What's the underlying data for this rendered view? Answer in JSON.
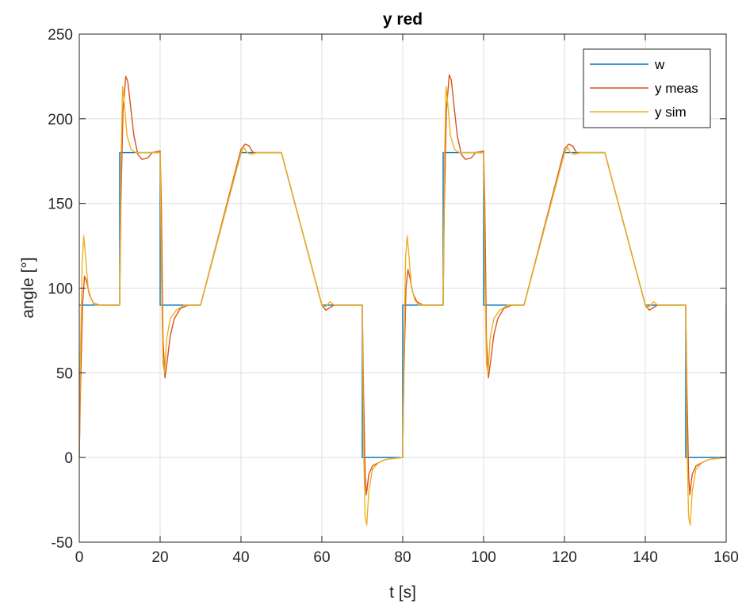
{
  "chart_data": {
    "type": "line",
    "title": "y red",
    "xlabel": "t [s]",
    "ylabel": "angle [°]",
    "xlim": [
      0,
      160
    ],
    "ylim": [
      -50,
      250
    ],
    "xticks": [
      0,
      20,
      40,
      60,
      80,
      100,
      120,
      140,
      160
    ],
    "yticks": [
      -50,
      0,
      50,
      100,
      150,
      200,
      250
    ],
    "grid": true,
    "legend_position": "top-right",
    "series": [
      {
        "name": "w",
        "color": "#0072BD",
        "points": [
          [
            0,
            90
          ],
          [
            10,
            90
          ],
          [
            10,
            180
          ],
          [
            20,
            180
          ],
          [
            20,
            90
          ],
          [
            30,
            90
          ],
          [
            40,
            180
          ],
          [
            50,
            180
          ],
          [
            60,
            90
          ],
          [
            70,
            90
          ],
          [
            70,
            0
          ],
          [
            80,
            0
          ],
          [
            80,
            90
          ],
          [
            90,
            90
          ],
          [
            90,
            180
          ],
          [
            100,
            180
          ],
          [
            100,
            90
          ],
          [
            110,
            90
          ],
          [
            120,
            180
          ],
          [
            130,
            180
          ],
          [
            140,
            90
          ],
          [
            150,
            90
          ],
          [
            150,
            0
          ],
          [
            160,
            0
          ],
          [
            160,
            90
          ]
        ]
      },
      {
        "name": "y meas",
        "color": "#D95319",
        "points": [
          [
            0,
            0
          ],
          [
            0.3,
            40
          ],
          [
            0.8,
            90
          ],
          [
            1.3,
            107
          ],
          [
            1.8,
            104
          ],
          [
            2.5,
            96
          ],
          [
            3.5,
            91
          ],
          [
            5,
            90
          ],
          [
            10,
            90
          ],
          [
            10.3,
            150
          ],
          [
            10.8,
            205
          ],
          [
            11.5,
            225
          ],
          [
            12,
            222
          ],
          [
            12.8,
            205
          ],
          [
            13.5,
            190
          ],
          [
            14.5,
            179
          ],
          [
            15.5,
            176
          ],
          [
            17,
            177
          ],
          [
            18,
            180
          ],
          [
            20,
            181
          ],
          [
            20.3,
            150
          ],
          [
            20.7,
            70
          ],
          [
            21.2,
            47
          ],
          [
            21.8,
            58
          ],
          [
            22.5,
            72
          ],
          [
            23.5,
            82
          ],
          [
            25,
            88
          ],
          [
            27,
            90
          ],
          [
            30,
            90
          ],
          [
            40,
            182
          ],
          [
            41,
            185
          ],
          [
            42,
            184
          ],
          [
            43,
            180
          ],
          [
            50,
            180
          ],
          [
            60,
            90
          ],
          [
            61,
            87
          ],
          [
            62,
            88.5
          ],
          [
            63,
            90
          ],
          [
            70,
            90
          ],
          [
            70.3,
            40
          ],
          [
            70.7,
            -10
          ],
          [
            71,
            -22
          ],
          [
            71.6,
            -10
          ],
          [
            72.5,
            -5
          ],
          [
            74,
            -3
          ],
          [
            76,
            -1
          ],
          [
            80,
            0
          ],
          [
            80.3,
            50
          ],
          [
            80.8,
            100
          ],
          [
            81.3,
            111
          ],
          [
            81.8,
            106
          ],
          [
            82.5,
            97
          ],
          [
            83.5,
            92
          ],
          [
            85,
            90
          ],
          [
            90,
            90
          ],
          [
            90.3,
            150
          ],
          [
            90.8,
            205
          ],
          [
            91.5,
            226
          ],
          [
            92,
            223
          ],
          [
            92.8,
            205
          ],
          [
            93.5,
            190
          ],
          [
            94.5,
            179
          ],
          [
            95.5,
            176
          ],
          [
            97,
            177
          ],
          [
            98,
            180
          ],
          [
            100,
            181
          ],
          [
            100.3,
            150
          ],
          [
            100.7,
            70
          ],
          [
            101.2,
            47
          ],
          [
            101.8,
            58
          ],
          [
            102.5,
            72
          ],
          [
            103.5,
            82
          ],
          [
            105,
            88
          ],
          [
            107,
            90
          ],
          [
            110,
            90
          ],
          [
            120,
            182
          ],
          [
            121,
            185
          ],
          [
            122,
            184
          ],
          [
            123,
            180
          ],
          [
            130,
            180
          ],
          [
            140,
            90
          ],
          [
            141,
            87
          ],
          [
            142,
            88.5
          ],
          [
            143,
            90
          ],
          [
            150,
            90
          ],
          [
            150.3,
            40
          ],
          [
            150.7,
            -10
          ],
          [
            151,
            -22
          ],
          [
            151.6,
            -10
          ],
          [
            152.5,
            -5
          ],
          [
            154,
            -3
          ],
          [
            156,
            -1
          ],
          [
            160,
            0
          ]
        ]
      },
      {
        "name": "y sim",
        "color": "#EDB120",
        "points": [
          [
            0,
            0
          ],
          [
            0.3,
            60
          ],
          [
            0.7,
            115
          ],
          [
            1.1,
            131
          ],
          [
            1.5,
            120
          ],
          [
            2.2,
            100
          ],
          [
            3,
            93
          ],
          [
            4,
            90
          ],
          [
            10,
            90
          ],
          [
            10.3,
            170
          ],
          [
            10.7,
            219
          ],
          [
            11.1,
            210
          ],
          [
            11.8,
            190
          ],
          [
            12.8,
            182
          ],
          [
            14,
            180
          ],
          [
            20,
            180
          ],
          [
            20.3,
            110
          ],
          [
            20.7,
            55
          ],
          [
            21.1,
            50
          ],
          [
            21.6,
            70
          ],
          [
            22.5,
            82
          ],
          [
            24,
            87
          ],
          [
            26,
            90
          ],
          [
            30,
            90
          ],
          [
            40,
            180
          ],
          [
            40.8,
            183
          ],
          [
            41.5,
            180
          ],
          [
            42.5,
            179
          ],
          [
            44,
            180
          ],
          [
            50,
            180
          ],
          [
            60,
            90
          ],
          [
            61,
            89
          ],
          [
            62,
            92
          ],
          [
            63,
            90
          ],
          [
            70,
            90
          ],
          [
            70.3,
            10
          ],
          [
            70.7,
            -35
          ],
          [
            71.1,
            -40
          ],
          [
            71.6,
            -20
          ],
          [
            72.5,
            -7
          ],
          [
            74,
            -3
          ],
          [
            76,
            -1
          ],
          [
            80,
            0
          ],
          [
            80.3,
            60
          ],
          [
            80.7,
            118
          ],
          [
            81.1,
            131
          ],
          [
            81.5,
            120
          ],
          [
            82.2,
            100
          ],
          [
            83,
            93
          ],
          [
            84,
            90
          ],
          [
            90,
            90
          ],
          [
            90.3,
            170
          ],
          [
            90.7,
            219
          ],
          [
            91.1,
            210
          ],
          [
            91.8,
            190
          ],
          [
            92.8,
            182
          ],
          [
            94,
            180
          ],
          [
            100,
            180
          ],
          [
            100.3,
            110
          ],
          [
            100.7,
            55
          ],
          [
            101.1,
            50
          ],
          [
            101.6,
            70
          ],
          [
            102.5,
            82
          ],
          [
            104,
            87
          ],
          [
            106,
            90
          ],
          [
            110,
            90
          ],
          [
            120,
            180
          ],
          [
            120.8,
            183
          ],
          [
            121.5,
            180
          ],
          [
            122.5,
            179
          ],
          [
            124,
            180
          ],
          [
            130,
            180
          ],
          [
            140,
            90
          ],
          [
            141,
            89
          ],
          [
            142,
            92
          ],
          [
            143,
            90
          ],
          [
            150,
            90
          ],
          [
            150.3,
            10
          ],
          [
            150.7,
            -35
          ],
          [
            151.1,
            -40
          ],
          [
            151.6,
            -20
          ],
          [
            152.5,
            -7
          ],
          [
            154,
            -3
          ],
          [
            156,
            -1
          ],
          [
            160,
            0
          ]
        ]
      }
    ]
  }
}
